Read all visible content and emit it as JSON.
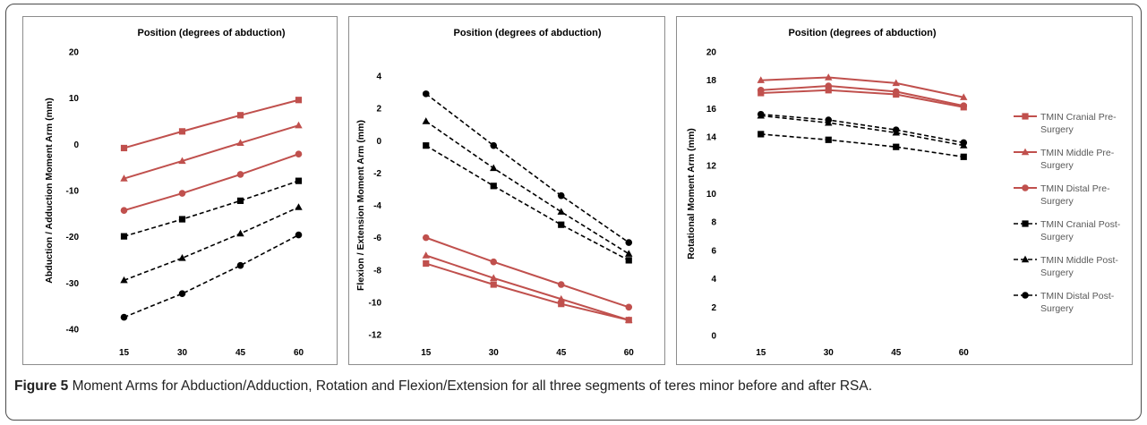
{
  "caption": {
    "label": "Figure 5",
    "text": " Moment Arms for Abduction/Adduction, Rotation and Flexion/Extension for all three segments of teres minor before and after RSA",
    "end": "."
  },
  "colors": {
    "pre": "#c0504d",
    "post": "#000000"
  },
  "legend": [
    {
      "name": "TMIN Cranial Pre-Surgery",
      "lines": [
        "TMIN Cranial Pre-",
        "Surgery"
      ],
      "marker": "square",
      "style": "pre"
    },
    {
      "name": "TMIN Middle Pre-Surgery",
      "lines": [
        "TMIN Middle Pre-",
        "Surgery"
      ],
      "marker": "triangle",
      "style": "pre"
    },
    {
      "name": "TMIN Distal Pre-Surgery",
      "lines": [
        "TMIN Distal Pre-",
        "Surgery"
      ],
      "marker": "circle",
      "style": "pre"
    },
    {
      "name": "TMIN Cranial Post-Surgery",
      "lines": [
        "TMIN Cranial Post-",
        "Surgery"
      ],
      "marker": "square",
      "style": "post"
    },
    {
      "name": "TMIN Middle Post-Surgery",
      "lines": [
        "TMIN Middle Post-",
        "Surgery"
      ],
      "marker": "triangle",
      "style": "post"
    },
    {
      "name": "TMIN Distal Post-Surgery",
      "lines": [
        "TMIN Distal Post-",
        "Surgery"
      ],
      "marker": "circle",
      "style": "post"
    }
  ],
  "chart_data": [
    {
      "type": "line",
      "title": "Position (degrees of abduction)",
      "ylabel": "Abduction / Adduction Moment Arm (mm)",
      "categories": [
        "15",
        "30",
        "45",
        "60"
      ],
      "ylim": [
        -40,
        20
      ],
      "yticks": [
        -40,
        -30,
        -20,
        -10,
        0,
        10,
        20
      ],
      "series": [
        {
          "name": "TMIN Cranial Pre-Surgery",
          "marker": "square",
          "style": "pre",
          "values": [
            -0.8,
            2.8,
            6.3,
            9.6
          ]
        },
        {
          "name": "TMIN Middle Pre-Surgery",
          "marker": "triangle",
          "style": "pre",
          "values": [
            -7.4,
            -3.6,
            0.3,
            4.1
          ]
        },
        {
          "name": "TMIN Distal Pre-Surgery",
          "marker": "circle",
          "style": "pre",
          "values": [
            -14.3,
            -10.6,
            -6.5,
            -2.1
          ]
        },
        {
          "name": "TMIN Cranial Post-Surgery",
          "marker": "square",
          "style": "post",
          "values": [
            -19.9,
            -16.2,
            -12.2,
            -7.9
          ]
        },
        {
          "name": "TMIN Middle Post-Surgery",
          "marker": "triangle",
          "style": "post",
          "values": [
            -29.4,
            -24.6,
            -19.3,
            -13.6
          ]
        },
        {
          "name": "TMIN Distal Post-Surgery",
          "marker": "circle",
          "style": "post",
          "values": [
            -37.4,
            -32.3,
            -26.2,
            -19.6
          ]
        }
      ]
    },
    {
      "type": "line",
      "title": "Position (degrees of abduction)",
      "ylabel": "Flexion / Extension Moment Arm (mm)",
      "categories": [
        "15",
        "30",
        "45",
        "60"
      ],
      "ylim": [
        -12,
        4
      ],
      "yticks": [
        -12,
        -10,
        -8,
        -6,
        -4,
        -2,
        0,
        2,
        4
      ],
      "series": [
        {
          "name": "TMIN Cranial Pre-Surgery",
          "marker": "square",
          "style": "pre",
          "values": [
            -7.6,
            -8.9,
            -10.1,
            -11.1
          ]
        },
        {
          "name": "TMIN Middle Pre-Surgery",
          "marker": "triangle",
          "style": "pre",
          "values": [
            -7.1,
            -8.5,
            -9.8,
            -11.1
          ]
        },
        {
          "name": "TMIN Distal Pre-Surgery",
          "marker": "circle",
          "style": "pre",
          "values": [
            -6.0,
            -7.5,
            -8.9,
            -10.3
          ]
        },
        {
          "name": "TMIN Cranial Post-Surgery",
          "marker": "square",
          "style": "post",
          "values": [
            -0.3,
            -2.8,
            -5.2,
            -7.4
          ]
        },
        {
          "name": "TMIN Middle Post-Surgery",
          "marker": "triangle",
          "style": "post",
          "values": [
            1.2,
            -1.7,
            -4.4,
            -7.0
          ]
        },
        {
          "name": "TMIN Distal Post-Surgery",
          "marker": "circle",
          "style": "post",
          "values": [
            2.9,
            -0.3,
            -3.4,
            -6.3
          ]
        }
      ]
    },
    {
      "type": "line",
      "title": "Position (degrees of abduction)",
      "ylabel": "Rotational Moment Arm (mm)",
      "categories": [
        "15",
        "30",
        "45",
        "60"
      ],
      "ylim": [
        0,
        20
      ],
      "yticks": [
        0,
        2,
        4,
        6,
        8,
        10,
        12,
        14,
        16,
        18,
        20
      ],
      "legend": "right",
      "series": [
        {
          "name": "TMIN Cranial Pre-Surgery",
          "marker": "square",
          "style": "pre",
          "values": [
            17.1,
            17.3,
            17.0,
            16.1
          ]
        },
        {
          "name": "TMIN Middle Pre-Surgery",
          "marker": "triangle",
          "style": "pre",
          "values": [
            18.0,
            18.2,
            17.8,
            16.8
          ]
        },
        {
          "name": "TMIN Distal Pre-Surgery",
          "marker": "circle",
          "style": "pre",
          "values": [
            17.3,
            17.6,
            17.2,
            16.2
          ]
        },
        {
          "name": "TMIN Cranial Post-Surgery",
          "marker": "square",
          "style": "post",
          "values": [
            14.2,
            13.8,
            13.3,
            12.6
          ]
        },
        {
          "name": "TMIN Middle Post-Surgery",
          "marker": "triangle",
          "style": "post",
          "values": [
            15.5,
            15.0,
            14.3,
            13.4
          ]
        },
        {
          "name": "TMIN Distal Post-Surgery",
          "marker": "circle",
          "style": "post",
          "values": [
            15.6,
            15.2,
            14.5,
            13.6
          ]
        }
      ]
    }
  ]
}
